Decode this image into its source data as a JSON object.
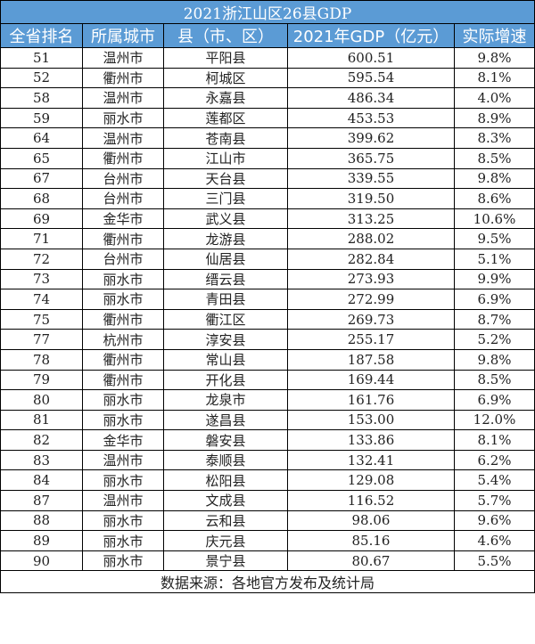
{
  "title": "2021浙江山区26县GDP",
  "headers": [
    "全省排名",
    "所属城市",
    "县（市、区）",
    "2021年GDP（亿元）",
    "实际增速"
  ],
  "rows": [
    [
      "51",
      "温州市",
      "平阳县",
      "600.51",
      "9.8%"
    ],
    [
      "52",
      "衢州市",
      "柯城区",
      "595.54",
      "8.1%"
    ],
    [
      "58",
      "温州市",
      "永嘉县",
      "486.34",
      "4.0%"
    ],
    [
      "59",
      "丽水市",
      "莲都区",
      "453.53",
      "8.9%"
    ],
    [
      "64",
      "温州市",
      "苍南县",
      "399.62",
      "8.3%"
    ],
    [
      "65",
      "衢州市",
      "江山市",
      "365.75",
      "8.5%"
    ],
    [
      "67",
      "台州市",
      "天台县",
      "339.55",
      "9.8%"
    ],
    [
      "68",
      "台州市",
      "三门县",
      "319.50",
      "8.6%"
    ],
    [
      "69",
      "金华市",
      "武义县",
      "313.25",
      "10.6%"
    ],
    [
      "71",
      "衢州市",
      "龙游县",
      "288.02",
      "9.5%"
    ],
    [
      "72",
      "台州市",
      "仙居县",
      "282.84",
      "5.1%"
    ],
    [
      "73",
      "丽水市",
      "缙云县",
      "273.93",
      "9.9%"
    ],
    [
      "74",
      "丽水市",
      "青田县",
      "272.99",
      "6.9%"
    ],
    [
      "75",
      "衢州市",
      "衢江区",
      "269.73",
      "8.7%"
    ],
    [
      "77",
      "杭州市",
      "淳安县",
      "255.17",
      "5.2%"
    ],
    [
      "78",
      "衢州市",
      "常山县",
      "187.58",
      "9.8%"
    ],
    [
      "79",
      "衢州市",
      "开化县",
      "169.44",
      "8.5%"
    ],
    [
      "80",
      "丽水市",
      "龙泉市",
      "161.76",
      "6.9%"
    ],
    [
      "81",
      "丽水市",
      "遂昌县",
      "153.00",
      "12.0%"
    ],
    [
      "82",
      "金华市",
      "磐安县",
      "133.86",
      "8.1%"
    ],
    [
      "83",
      "温州市",
      "泰顺县",
      "132.41",
      "6.2%"
    ],
    [
      "84",
      "丽水市",
      "松阳县",
      "129.08",
      "5.4%"
    ],
    [
      "87",
      "温州市",
      "文成县",
      "116.52",
      "5.7%"
    ],
    [
      "88",
      "丽水市",
      "云和县",
      "98.06",
      "9.6%"
    ],
    [
      "89",
      "丽水市",
      "庆元县",
      "85.16",
      "4.6%"
    ],
    [
      "90",
      "丽水市",
      "景宁县",
      "80.67",
      "5.5%"
    ]
  ],
  "footer": "数据来源：各地官方发布及统计局",
  "colors": {
    "header_bg": "#5b9bd5",
    "header_text": "#ffffff"
  }
}
